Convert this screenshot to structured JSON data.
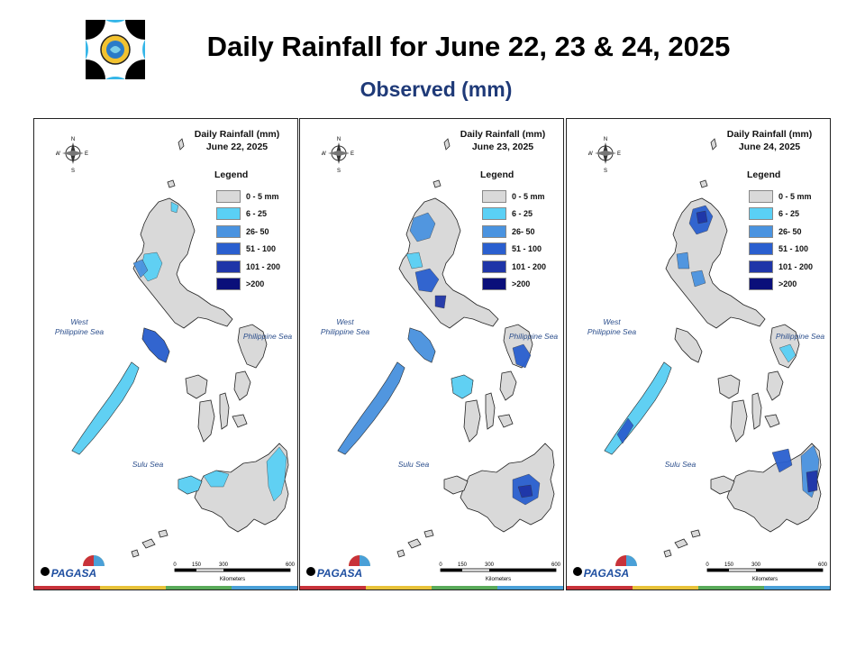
{
  "title": "Daily Rainfall for June 22, 23 & 24, 2025",
  "subtitle": "Observed (mm)",
  "legend": {
    "heading": "Legend",
    "classes": [
      {
        "label": "0 - 5 mm",
        "color": "#d9d9d9"
      },
      {
        "label": "6 - 25",
        "color": "#5ad0f5"
      },
      {
        "label": "26- 50",
        "color": "#4a93e0"
      },
      {
        "label": "51 - 100",
        "color": "#2a5fcf"
      },
      {
        "label": "101 - 200",
        "color": "#1f35a8"
      },
      {
        "label": ">200",
        "color": "#0a0f7a"
      }
    ]
  },
  "seas": {
    "west": "West\nPhilippine Sea",
    "east": "Philippine Sea",
    "sulu": "Sulu Sea"
  },
  "compass": {
    "n": "N",
    "s": "S",
    "e": "E",
    "w": "W"
  },
  "scale": {
    "ticks": [
      "0",
      "150",
      "300",
      "600"
    ],
    "unit": "Kilometers"
  },
  "pagasa_logo_text": "PAGASA",
  "maps": [
    {
      "title_line1": "Daily Rainfall (mm)",
      "title_line2": "June 22, 2025"
    },
    {
      "title_line1": "Daily Rainfall (mm)",
      "title_line2": "June 23, 2025"
    },
    {
      "title_line1": "Daily Rainfall (mm)",
      "title_line2": "June 24, 2025"
    }
  ],
  "footer_bar_colors": [
    "#c8323a",
    "#e8c23a",
    "#5aab5a",
    "#4aa0d8"
  ]
}
